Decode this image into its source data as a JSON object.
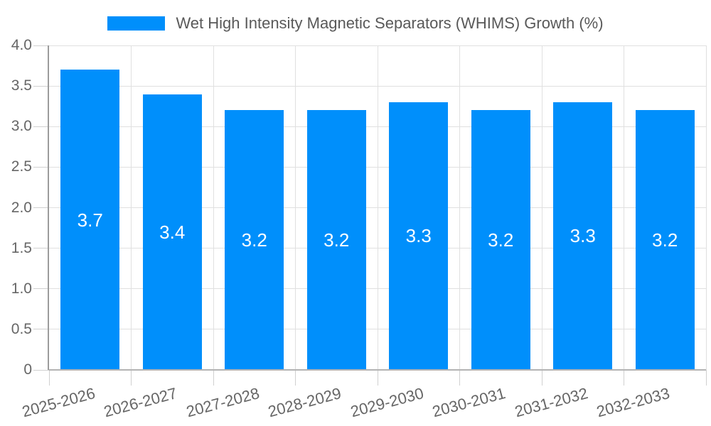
{
  "chart_data": {
    "type": "bar",
    "title": "Wet High Intensity Magnetic Separators (WHIMS) Growth (%)",
    "categories": [
      "2025-2026",
      "2026-2027",
      "2027-2028",
      "2028-2029",
      "2029-2030",
      "2030-2031",
      "2031-2032",
      "2032-2033"
    ],
    "values": [
      3.7,
      3.4,
      3.2,
      3.2,
      3.3,
      3.2,
      3.3,
      3.2
    ],
    "xlabel": "",
    "ylabel": "",
    "ylim": [
      0,
      4
    ],
    "ytick_step": 0.5,
    "yticks": [
      {
        "v": 0,
        "label": "0"
      },
      {
        "v": 0.5,
        "label": "0.5"
      },
      {
        "v": 1,
        "label": "1.0"
      },
      {
        "v": 1.5,
        "label": "1.5"
      },
      {
        "v": 2,
        "label": "2.0"
      },
      {
        "v": 2.5,
        "label": "2.5"
      },
      {
        "v": 3,
        "label": "3.0"
      },
      {
        "v": 3.5,
        "label": "3.5"
      },
      {
        "v": 4,
        "label": "4.0"
      }
    ],
    "grid": true,
    "legend_position": "top",
    "bar_labels_inside": true,
    "x_label_rotation_deg": -15,
    "colors": {
      "bar": "#008FFB",
      "grid": "#e0e0e0",
      "tick": "#d0d0d0",
      "axis_y": "#9c9c9c",
      "axis_x": "#b3b3b3",
      "text": "#666666",
      "legend_text": "#595959",
      "value_label": "#ffffff",
      "background": "#ffffff"
    }
  }
}
